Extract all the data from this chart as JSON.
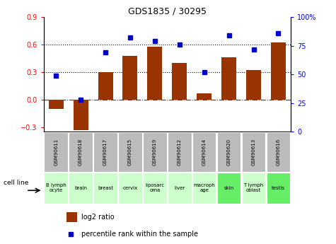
{
  "title": "GDS1835 / 30295",
  "samples": [
    "GSM90611",
    "GSM90618",
    "GSM90617",
    "GSM90615",
    "GSM90619",
    "GSM90612",
    "GSM90614",
    "GSM90620",
    "GSM90613",
    "GSM90616"
  ],
  "cell_lines": [
    "B lymph\nocyte",
    "brain",
    "breast",
    "cervix",
    "liposarc\noma",
    "liver",
    "macroph\nage",
    "skin",
    "T lymph\noblast",
    "testis"
  ],
  "cell_line_colors": [
    "#ccffcc",
    "#ccffcc",
    "#ccffcc",
    "#ccffcc",
    "#ccffcc",
    "#ccffcc",
    "#ccffcc",
    "#66ee66",
    "#ccffcc",
    "#66ee66"
  ],
  "log2_ratio": [
    -0.1,
    -0.33,
    0.3,
    0.48,
    0.58,
    0.4,
    0.07,
    0.46,
    0.32,
    0.62
  ],
  "percentile_rank": [
    49,
    28,
    69,
    82,
    79,
    76,
    52,
    84,
    72,
    86
  ],
  "ylim_left": [
    -0.35,
    0.9
  ],
  "ylim_right": [
    0,
    100
  ],
  "left_yticks": [
    -0.3,
    0,
    0.3,
    0.6,
    0.9
  ],
  "right_yticks": [
    0,
    25,
    50,
    75,
    100
  ],
  "right_yticklabels": [
    "0",
    "25",
    "50",
    "75",
    "100%"
  ],
  "hlines_dotted": [
    0.3,
    0.6
  ],
  "hline_zero": 0,
  "bar_color": "#993300",
  "dot_color": "#0000cc",
  "hline_color": "#cc0000",
  "dotted_line_color": "#000000",
  "sample_box_color": "#bbbbbb",
  "legend_bar_label": "log2 ratio",
  "legend_dot_label": "percentile rank within the sample",
  "cell_line_label": "cell line"
}
